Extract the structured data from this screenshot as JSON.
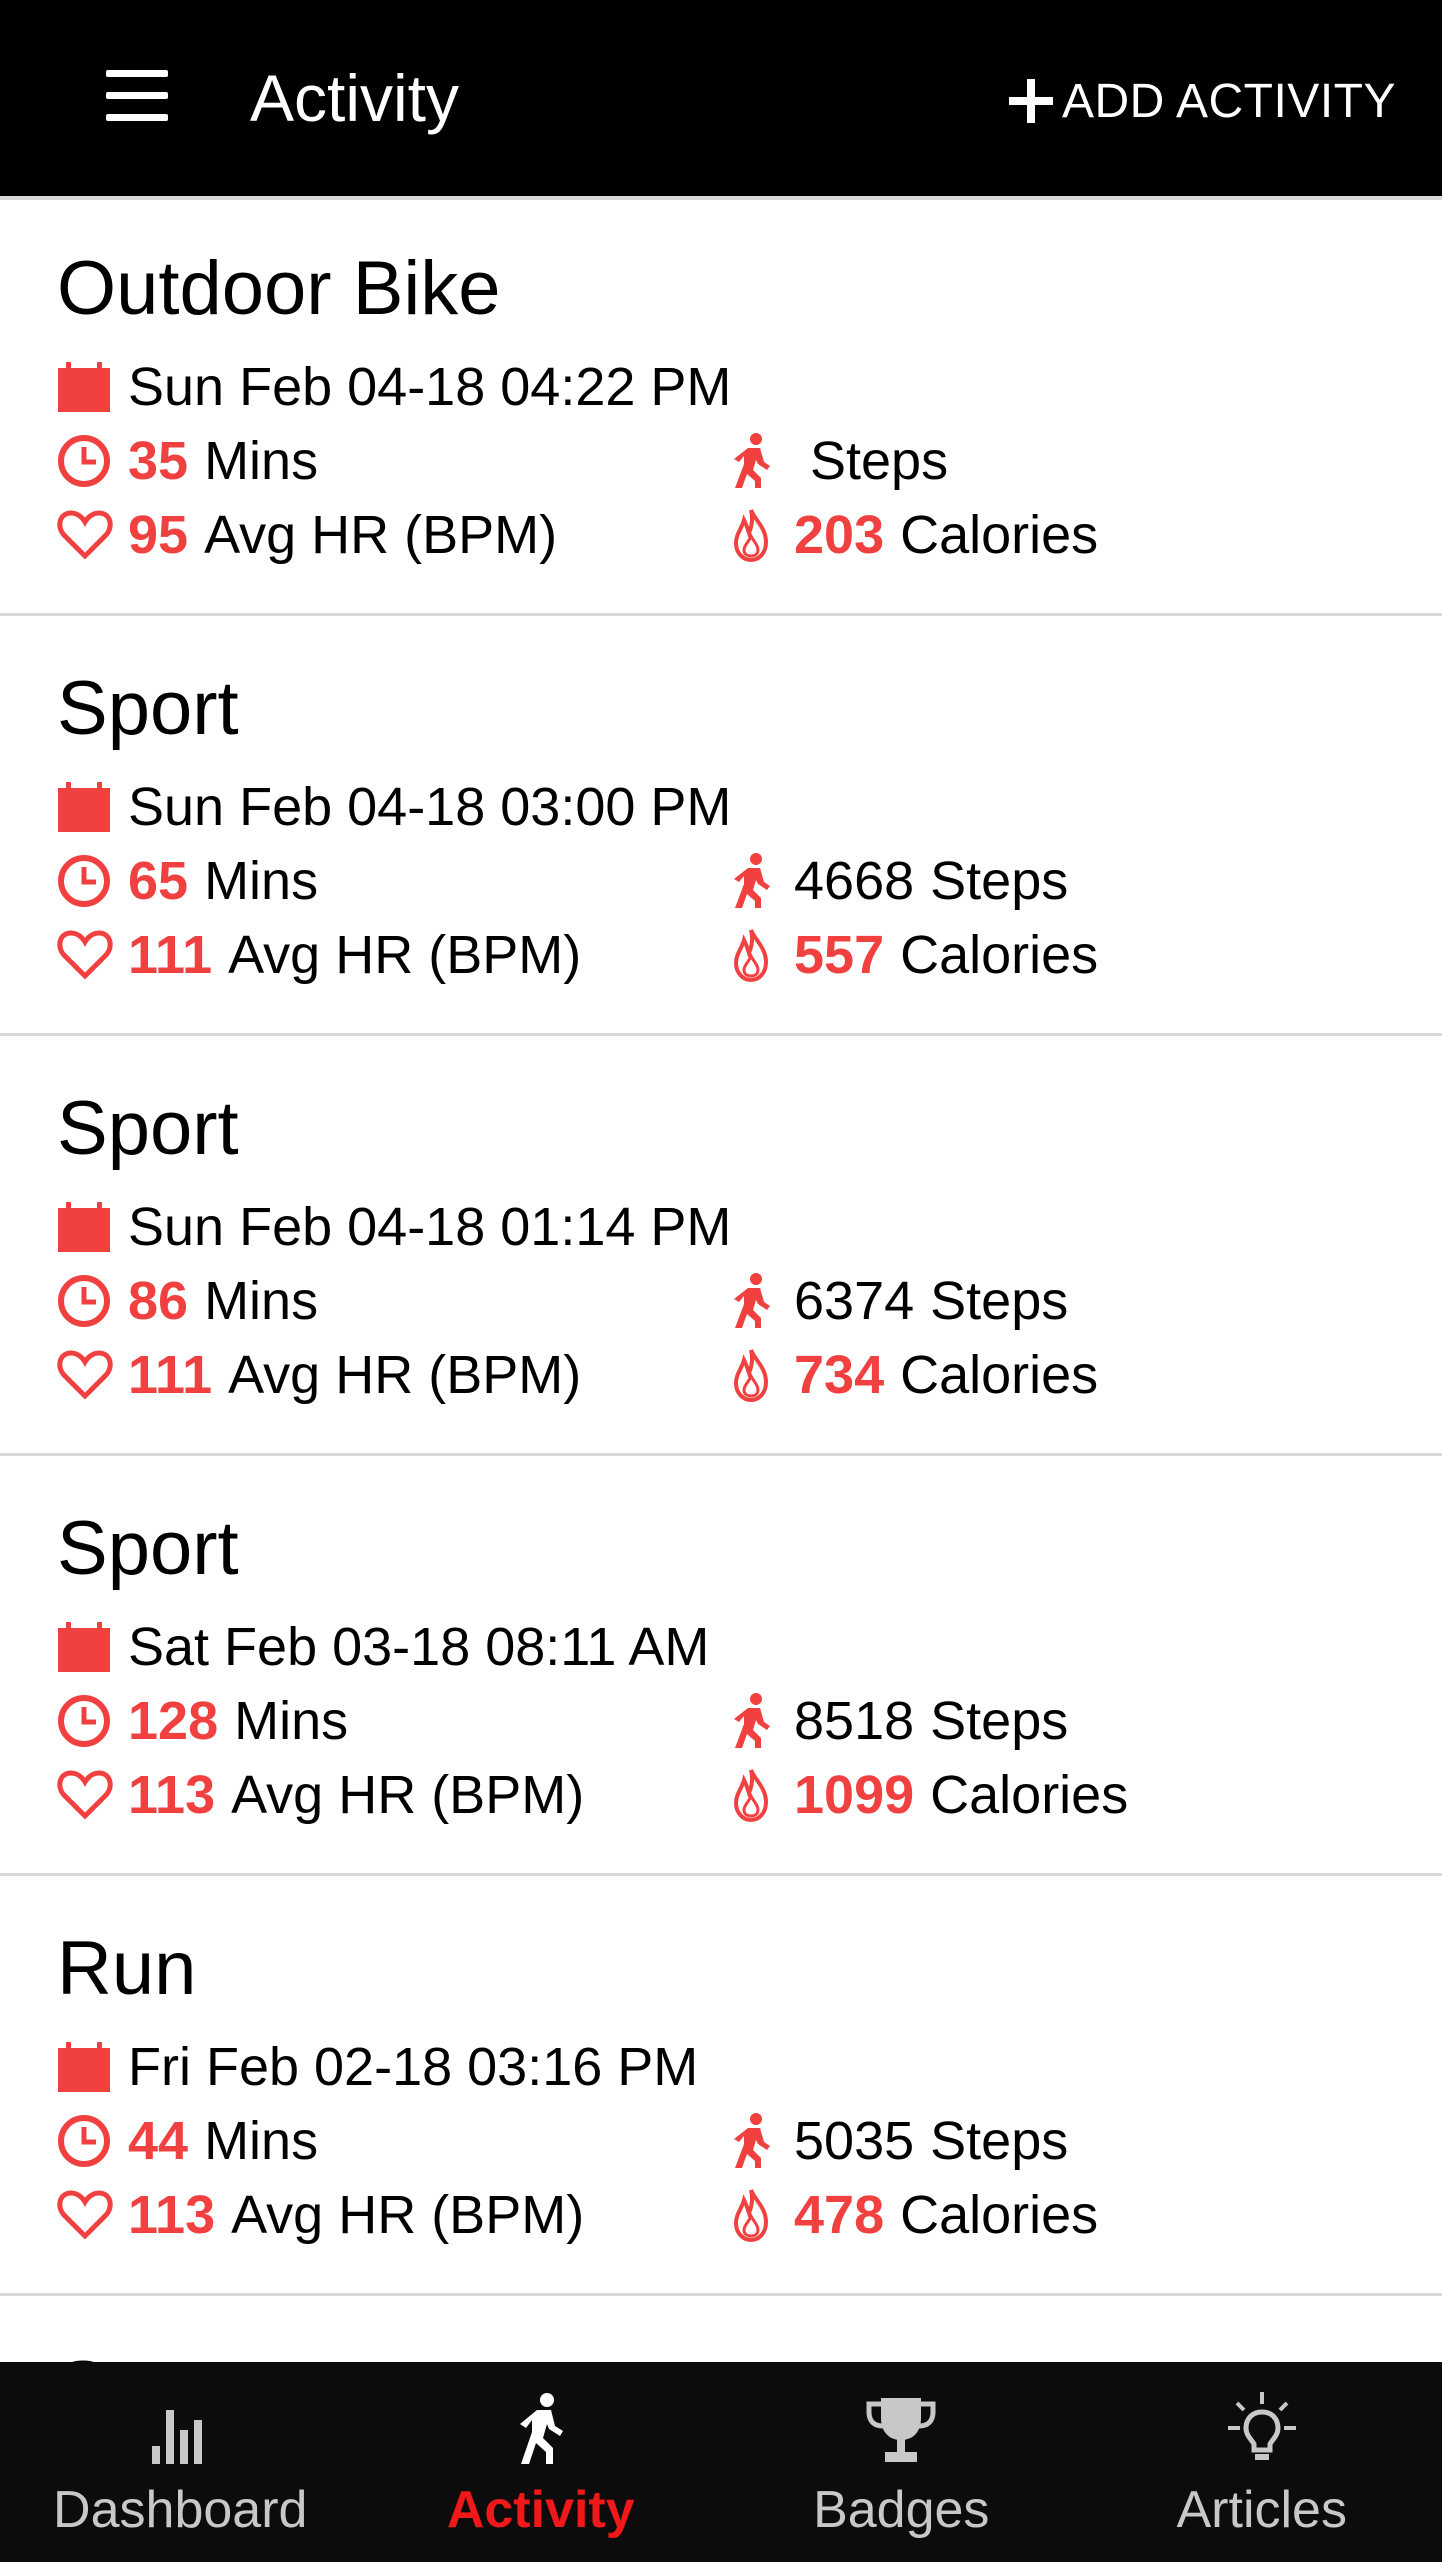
{
  "header": {
    "title": "Activity",
    "add_label": "ADD ACTIVITY"
  },
  "colors": {
    "accent": "#f04040",
    "active_tab": "#f01818",
    "header_bg": "#000000",
    "nav_bg": "#0c0c0c"
  },
  "activities": [
    {
      "title": "Outdoor Bike",
      "date": "Sun Feb 04-18 04:22 PM",
      "mins": "35",
      "mins_label": "Mins",
      "hr": "95",
      "hr_label": "Avg HR (BPM)",
      "steps": "",
      "steps_label": "Steps",
      "calories": "203",
      "calories_label": "Calories"
    },
    {
      "title": "Sport",
      "date": "Sun Feb 04-18 03:00 PM",
      "mins": "65",
      "mins_label": "Mins",
      "hr": "111",
      "hr_label": "Avg HR (BPM)",
      "steps": "4668",
      "steps_label": "Steps",
      "calories": "557",
      "calories_label": "Calories"
    },
    {
      "title": "Sport",
      "date": "Sun Feb 04-18 01:14 PM",
      "mins": "86",
      "mins_label": "Mins",
      "hr": "111",
      "hr_label": "Avg HR (BPM)",
      "steps": "6374",
      "steps_label": "Steps",
      "calories": "734",
      "calories_label": "Calories"
    },
    {
      "title": "Sport",
      "date": "Sat Feb 03-18 08:11 AM",
      "mins": "128",
      "mins_label": "Mins",
      "hr": "113",
      "hr_label": "Avg HR (BPM)",
      "steps": "8518",
      "steps_label": "Steps",
      "calories": "1099",
      "calories_label": "Calories"
    },
    {
      "title": "Run",
      "date": "Fri Feb 02-18 03:16 PM",
      "mins": "44",
      "mins_label": "Mins",
      "hr": "113",
      "hr_label": "Avg HR (BPM)",
      "steps": "5035",
      "steps_label": "Steps",
      "calories": "478",
      "calories_label": "Calories"
    },
    {
      "title": "Sport"
    }
  ],
  "nav": {
    "items": [
      {
        "label": "Dashboard",
        "icon": "bar-chart-icon"
      },
      {
        "label": "Activity",
        "icon": "walking-icon"
      },
      {
        "label": "Badges",
        "icon": "trophy-icon"
      },
      {
        "label": "Articles",
        "icon": "lightbulb-icon"
      }
    ],
    "active": "Activity"
  }
}
